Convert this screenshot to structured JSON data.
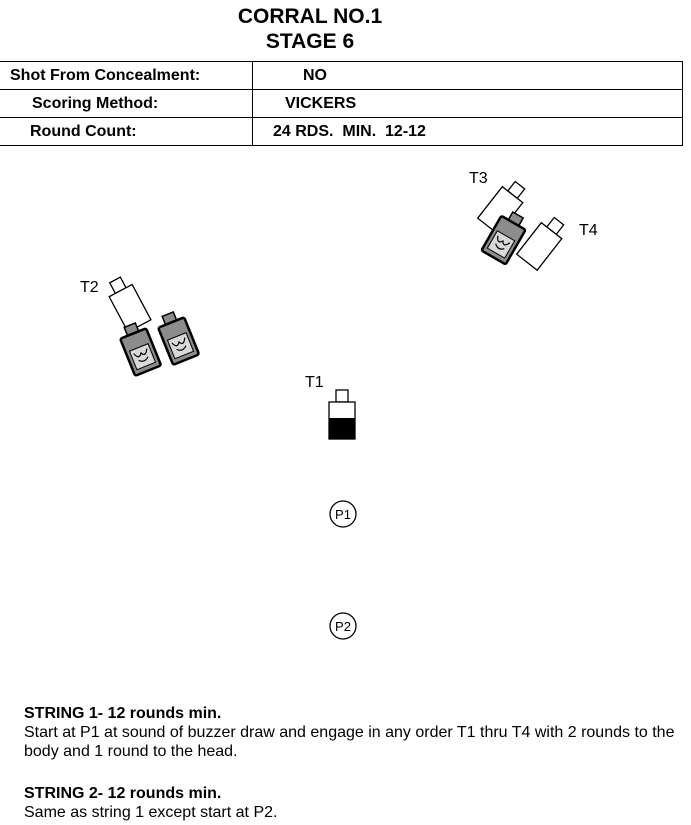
{
  "header": {
    "title": "CORRAL NO.1",
    "subtitle": "STAGE 6"
  },
  "info": [
    {
      "label": "Shot From Concealment:",
      "value": "NO"
    },
    {
      "label": "Scoring Method:",
      "value": "VICKERS"
    },
    {
      "label": "Round Count:",
      "value": "24 RDS.  MIN.  12-12"
    }
  ],
  "targets": {
    "t1": "T1",
    "t2": "T2",
    "t3": "T3",
    "t4": "T4"
  },
  "positions": {
    "p1": "P1",
    "p2": "P2"
  },
  "strings": [
    {
      "heading": "STRING 1- 12 rounds min.",
      "text": "Start at P1 at sound of buzzer draw and engage in any order T1 thru T4 with 2 rounds to the body and 1 round to the head."
    },
    {
      "heading": "STRING 2- 12 rounds min.",
      "text": "Same as string 1 except start at P2."
    }
  ],
  "colors": {
    "no_shoot_fill": "#8c8c8c",
    "ink": "#000000"
  }
}
